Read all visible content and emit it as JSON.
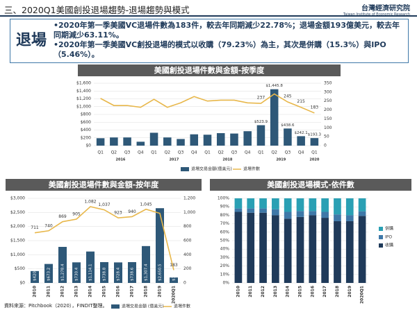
{
  "header": {
    "title": "三、2020Q1美國創投退場趨勢-退場趨勢與模式",
    "org": "台灣經濟研究院",
    "org_en": "Taiwan Institute of Economic Research"
  },
  "summary": {
    "label": "退場",
    "bullets": [
      "•2020年第一季美國VC退場件數為183件，較去年同期減少22.78%；退場金額193億美元，較去年同期減少63.11%。",
      "•2020年第一季美國VC創投退場的模式以收購（79.23%）為主，其次是併購（15.3%）與IPO（5.46%）。"
    ]
  },
  "source": "資料來源：Pitchbook（2020），FINDIT整理。",
  "chart_data": [
    {
      "type": "combo",
      "title": "美國創投退場件數與金額-按季度",
      "categories": [
        "Q1",
        "Q2",
        "Q3",
        "Q4",
        "Q1",
        "Q2",
        "Q3",
        "Q4",
        "Q1",
        "Q2",
        "Q3",
        "Q4",
        "Q1",
        "Q2",
        "Q3",
        "Q4",
        "Q1"
      ],
      "x_groups": [
        {
          "label": "2016",
          "count": 4
        },
        {
          "label": "2017",
          "count": 4
        },
        {
          "label": "2018",
          "count": 4
        },
        {
          "label": "2019",
          "count": 4
        },
        {
          "label": "2020",
          "count": 1
        }
      ],
      "series": [
        {
          "name": "退場交易金額(億美元)",
          "color": "#2e5878",
          "values": [
            190,
            210,
            210,
            100,
            330,
            210,
            170,
            290,
            280,
            320,
            310,
            370,
            523.9,
            1445.8,
            438.6,
            242.1,
            193.3
          ],
          "value_labels": [
            null,
            null,
            null,
            null,
            null,
            null,
            null,
            null,
            null,
            null,
            null,
            null,
            "$523.9",
            "$1,445.8",
            "$438.6",
            "$242.1",
            "$193.3"
          ]
        },
        {
          "name": "退場件數",
          "color": "#e8b74a",
          "axis": "y2",
          "values": [
            265,
            225,
            225,
            215,
            260,
            215,
            240,
            275,
            250,
            255,
            255,
            240,
            237,
            290,
            245,
            215,
            183
          ],
          "value_labels": [
            null,
            null,
            null,
            null,
            null,
            null,
            null,
            null,
            null,
            null,
            null,
            null,
            "237",
            null,
            "245",
            "215",
            "183"
          ]
        }
      ],
      "ylim": [
        0,
        1600
      ],
      "yticks": [
        {
          "value": 0,
          "label": "$0"
        },
        {
          "value": 200,
          "label": "$200"
        },
        {
          "value": 400,
          "label": "$400"
        },
        {
          "value": 600,
          "label": "$600"
        },
        {
          "value": 800,
          "label": "$800"
        },
        {
          "value": 1000,
          "label": "$1,000"
        },
        {
          "value": 1200,
          "label": "$1,200"
        },
        {
          "value": 1400,
          "label": "$1,400"
        },
        {
          "value": 1600,
          "label": "$1,600"
        }
      ],
      "y2lim": [
        0,
        350
      ],
      "y2ticks": [
        0,
        50,
        100,
        150,
        200,
        250,
        300,
        350
      ],
      "bar_label_position": "above",
      "legend": "bottom"
    },
    {
      "type": "combo",
      "title": "美國創投退場件數與金額-按年度",
      "categories": [
        "2010",
        "2011",
        "2012",
        "2013",
        "2014",
        "2015",
        "2016",
        "2017",
        "2018",
        "2019",
        "2020Q1"
      ],
      "series": [
        {
          "name": "退場交易金額 (億美元)",
          "color": "#2e5878",
          "values": [
            420.8,
            673.2,
            1278.4,
            730.4,
            1114.1,
            738.8,
            728.4,
            738.6,
            1307.4,
            2650.5,
            193.3
          ],
          "value_labels": [
            "$420.8",
            "$673.2",
            "$1,278.4",
            "$730.4",
            "$1,114.1",
            "$738.8",
            "$728.4",
            "$738.6",
            "$1,307.4",
            "$2,650.5",
            "$193.3"
          ]
        },
        {
          "name": "退場件數",
          "color": "#e8b74a",
          "axis": "y2",
          "values": [
            711,
            740,
            869,
            905,
            1082,
            1037,
            923,
            940,
            1045,
            987,
            183
          ],
          "value_labels": [
            "711",
            "740",
            "869",
            "905",
            "1,082",
            "1,037",
            "923",
            "940",
            "1,045",
            null,
            "183"
          ]
        }
      ],
      "ylim": [
        0,
        3000
      ],
      "yticks": [
        {
          "value": 0,
          "label": "$0"
        },
        {
          "value": 500,
          "label": "$500"
        },
        {
          "value": 1000,
          "label": "$1,000"
        },
        {
          "value": 1500,
          "label": "$1,500"
        },
        {
          "value": 2000,
          "label": "$2,000"
        },
        {
          "value": 2500,
          "label": "$2,500"
        },
        {
          "value": 3000,
          "label": "$3,000"
        }
      ],
      "y2lim": [
        0,
        1200
      ],
      "y2ticks": [
        0,
        200,
        400,
        600,
        800,
        {
          "value": 1000,
          "label": "1,000"
        },
        {
          "value": 1200,
          "label": "1,200"
        }
      ],
      "bar_label_position": "inside-rotated",
      "rotate_xticks": true,
      "legend": "bottom"
    },
    {
      "type": "stacked_bar",
      "title": "美國創投退場模式-依件數",
      "categories": [
        "2010",
        "2011",
        "2012",
        "2013",
        "2014",
        "2015",
        "2016",
        "2017",
        "2018",
        "2019",
        "2020Q1"
      ],
      "series": [
        {
          "name": "收購",
          "color": "#1f3a5a",
          "values": [
            84,
            83,
            83,
            80,
            76,
            78,
            80,
            77,
            73,
            73,
            79.23
          ]
        },
        {
          "name": "IPO",
          "color": "#3e78a8",
          "values": [
            4,
            5,
            5,
            7,
            8,
            7,
            5,
            7,
            8,
            7,
            5.46
          ]
        },
        {
          "name": "併購",
          "color": "#2aa0b4",
          "values": [
            12,
            12,
            12,
            13,
            16,
            15,
            15,
            16,
            19,
            20,
            15.3
          ]
        }
      ],
      "ylim": [
        0,
        100
      ],
      "yticks": [
        {
          "value": 0,
          "label": "0%"
        },
        {
          "value": 10,
          "label": "10%"
        },
        {
          "value": 20,
          "label": "20%"
        },
        {
          "value": 30,
          "label": "30%"
        },
        {
          "value": 40,
          "label": "40%"
        },
        {
          "value": 50,
          "label": "50%"
        },
        {
          "value": 60,
          "label": "60%"
        },
        {
          "value": 70,
          "label": "70%"
        },
        {
          "value": 80,
          "label": "80%"
        },
        {
          "value": 90,
          "label": "90%"
        },
        {
          "value": 100,
          "label": "100%"
        }
      ],
      "rotate_xticks": true,
      "legend": "right"
    }
  ]
}
